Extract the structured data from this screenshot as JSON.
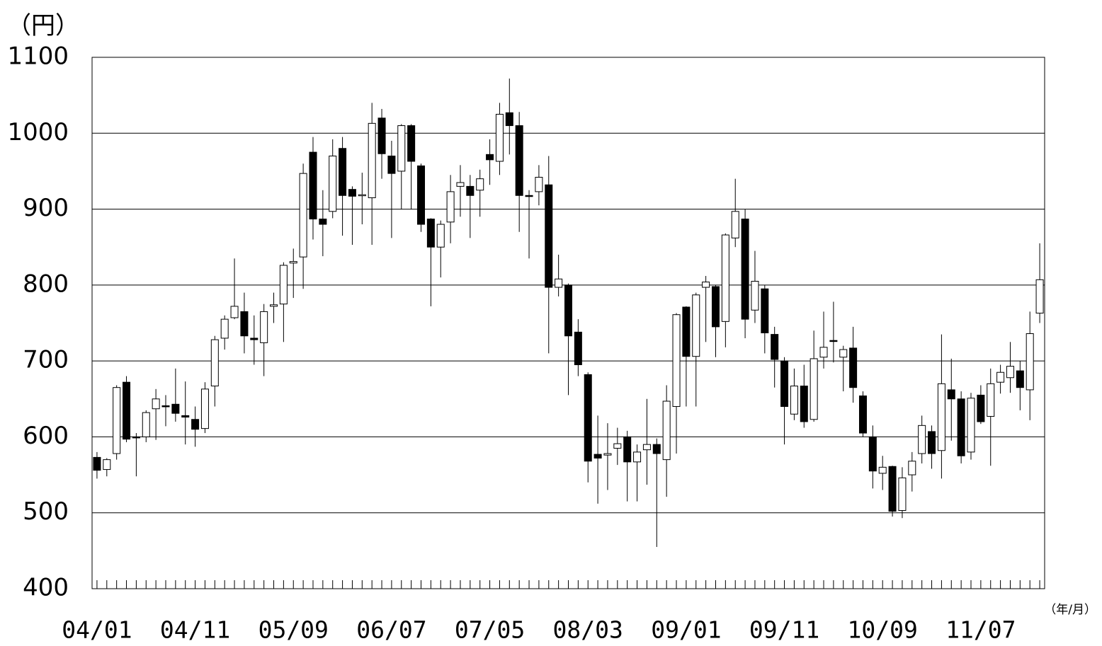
{
  "chart_data": {
    "type": "candlestick",
    "y_unit_label": "（円）",
    "x_unit_label": "（年/月）",
    "categories": [
      "04/01",
      null,
      null,
      null,
      null,
      null,
      null,
      null,
      null,
      null,
      "04/11",
      null,
      null,
      null,
      null,
      null,
      null,
      null,
      null,
      null,
      "05/09",
      null,
      null,
      null,
      null,
      null,
      null,
      null,
      null,
      null,
      "06/07",
      null,
      null,
      null,
      null,
      null,
      null,
      null,
      null,
      null,
      "07/05",
      null,
      null,
      null,
      null,
      null,
      null,
      null,
      null,
      null,
      "08/03",
      null,
      null,
      null,
      null,
      null,
      null,
      null,
      null,
      null,
      "09/01",
      null,
      null,
      null,
      null,
      null,
      null,
      null,
      null,
      null,
      "09/11",
      null,
      null,
      null,
      null,
      null,
      null,
      null,
      null,
      null,
      "10/09",
      null,
      null,
      null,
      null,
      null,
      null,
      null,
      null,
      null,
      "11/07",
      null,
      null,
      null,
      null,
      null,
      null
    ],
    "open": [
      573,
      557,
      578,
      672,
      600,
      600,
      637,
      641,
      643,
      628,
      623,
      611,
      667,
      730,
      757,
      765,
      730,
      724,
      772,
      775,
      829,
      837,
      975,
      887,
      897,
      980,
      926,
      918,
      915,
      1020,
      970,
      950,
      1010,
      957,
      887,
      850,
      883,
      930,
      930,
      925,
      972,
      963,
      1027,
      1010,
      918,
      923,
      932,
      797,
      800,
      738,
      682,
      577,
      576,
      585,
      600,
      567,
      583,
      590,
      570,
      640,
      771,
      706,
      797,
      798,
      752,
      862,
      887,
      767,
      795,
      735,
      700,
      630,
      667,
      623,
      705,
      727,
      705,
      717,
      654,
      600,
      552,
      561,
      503,
      550,
      578,
      607,
      582,
      662,
      650,
      580,
      655,
      627,
      672,
      678,
      687,
      662,
      763
    ],
    "high": [
      580,
      572,
      668,
      680,
      605,
      635,
      663,
      655,
      690,
      673,
      640,
      672,
      733,
      760,
      835,
      790,
      760,
      775,
      790,
      830,
      848,
      960,
      995,
      925,
      992,
      995,
      930,
      948,
      1040,
      1032,
      990,
      1012,
      1012,
      960,
      888,
      885,
      945,
      958,
      945,
      952,
      992,
      1040,
      1072,
      1028,
      925,
      958,
      970,
      840,
      802,
      755,
      685,
      628,
      618,
      612,
      608,
      590,
      650,
      598,
      668,
      763,
      772,
      790,
      812,
      800,
      868,
      940,
      900,
      845,
      800,
      745,
      705,
      690,
      695,
      740,
      765,
      778,
      720,
      745,
      660,
      615,
      575,
      562,
      560,
      580,
      628,
      615,
      735,
      703,
      660,
      658,
      668,
      690,
      695,
      725,
      700,
      765,
      855
    ],
    "low": [
      545,
      548,
      570,
      593,
      548,
      593,
      596,
      614,
      620,
      590,
      587,
      605,
      640,
      715,
      755,
      710,
      695,
      680,
      750,
      725,
      783,
      795,
      860,
      838,
      888,
      865,
      853,
      880,
      853,
      940,
      862,
      900,
      900,
      870,
      772,
      810,
      855,
      890,
      862,
      890,
      932,
      945,
      972,
      870,
      835,
      905,
      710,
      785,
      655,
      680,
      540,
      512,
      530,
      563,
      515,
      515,
      537,
      455,
      521,
      578,
      640,
      640,
      725,
      705,
      718,
      850,
      730,
      750,
      710,
      665,
      590,
      622,
      612,
      620,
      690,
      698,
      660,
      645,
      600,
      532,
      530,
      495,
      493,
      528,
      565,
      558,
      545,
      595,
      565,
      570,
      617,
      562,
      657,
      658,
      635,
      622,
      750
    ],
    "close": [
      556,
      570,
      665,
      597,
      599,
      632,
      650,
      640,
      631,
      626,
      610,
      663,
      728,
      755,
      772,
      733,
      728,
      765,
      774,
      826,
      831,
      947,
      887,
      880,
      970,
      918,
      917,
      919,
      1013,
      973,
      947,
      1010,
      963,
      880,
      850,
      880,
      923,
      935,
      918,
      940,
      965,
      1025,
      1010,
      918,
      917,
      942,
      797,
      808,
      733,
      695,
      568,
      572,
      578,
      591,
      567,
      580,
      590,
      578,
      647,
      761,
      706,
      787,
      804,
      745,
      866,
      897,
      755,
      805,
      737,
      702,
      640,
      667,
      620,
      703,
      718,
      726,
      715,
      665,
      605,
      555,
      560,
      502,
      546,
      568,
      615,
      578,
      670,
      650,
      575,
      651,
      620,
      670,
      685,
      693,
      665,
      736,
      807
    ],
    "up_color": "#ffffff",
    "down_color": "#000000",
    "ylim": [
      400,
      1100
    ],
    "yticks": [
      400,
      500,
      600,
      700,
      800,
      900,
      1000,
      1100
    ],
    "grid": true
  }
}
